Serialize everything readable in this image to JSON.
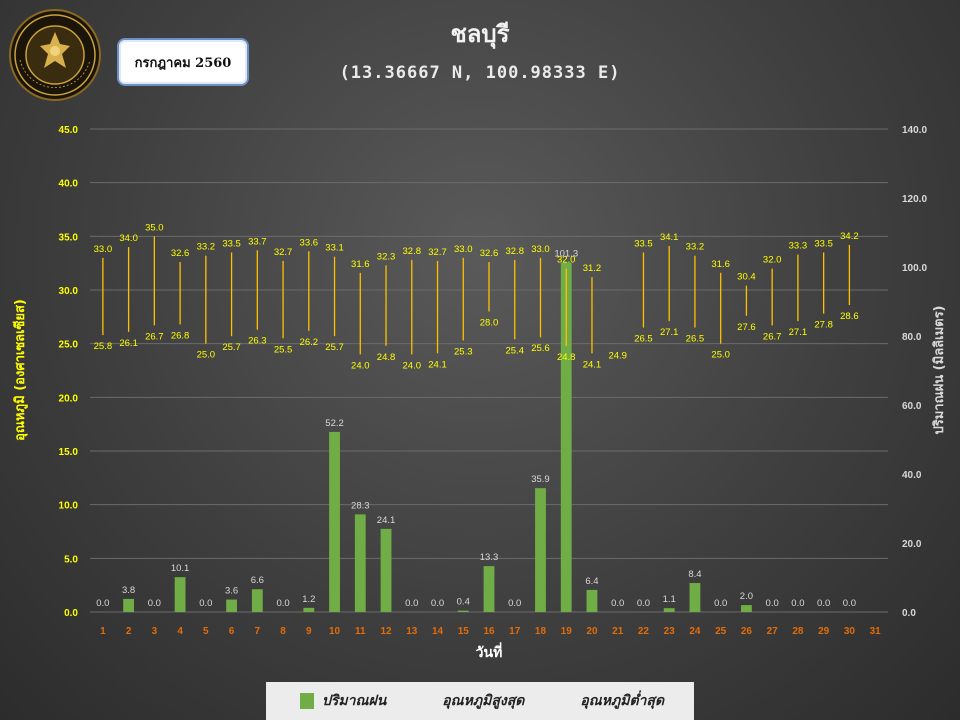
{
  "header": {
    "title": "ชลบุรี",
    "coords": "(13.36667 N, 100.98333 E)",
    "period_badge": "กรกฎาคม 2560",
    "logo_text": "METEOROLOGICAL DEPARTMENT"
  },
  "legend": {
    "rain": "ปริมาณฝน",
    "tmax": "อุณหภูมิสูงสุด",
    "tmin": "อุณหภูมิต่ำสุด"
  },
  "colors": {
    "rain_bar": "#70ad47",
    "temp_line": "#ffc000",
    "temp_label": "#ffff00",
    "day_label": "#e36c0a",
    "rain_label": "#d9d9d9",
    "left_axis": "#ffff00",
    "right_axis": "#d9d9d9"
  },
  "chart_data": {
    "type": "bar",
    "xlabel": "วันที่",
    "ylabel_left": "อุณหภูมิ (องศาเซลเซียส)",
    "ylabel_right": "ปริมาณฝน (มิลลิเมตร)",
    "ylim_left": [
      0,
      45
    ],
    "yticks_left": [
      "0.0",
      "5.0",
      "10.0",
      "15.0",
      "20.0",
      "25.0",
      "30.0",
      "35.0",
      "40.0",
      "45.0"
    ],
    "ylim_right": [
      0,
      140
    ],
    "yticks_right": [
      "0.0",
      "20.0",
      "40.0",
      "60.0",
      "80.0",
      "100.0",
      "120.0",
      "140.0"
    ],
    "categories": [
      "1",
      "2",
      "3",
      "4",
      "5",
      "6",
      "7",
      "8",
      "9",
      "10",
      "11",
      "12",
      "13",
      "14",
      "15",
      "16",
      "17",
      "18",
      "19",
      "20",
      "21",
      "22",
      "23",
      "24",
      "25",
      "26",
      "27",
      "28",
      "29",
      "30",
      "31"
    ],
    "legend_position": "bottom",
    "grid": true,
    "series": [
      {
        "name": "ปริมาณฝน",
        "axis": "right",
        "type": "bar",
        "values": [
          0.0,
          3.8,
          0.0,
          10.1,
          0.0,
          3.6,
          6.6,
          0.0,
          1.2,
          52.2,
          28.3,
          24.1,
          0.0,
          0.0,
          0.4,
          13.3,
          0.0,
          35.9,
          101.3,
          6.4,
          0.0,
          0.0,
          1.1,
          8.4,
          0.0,
          2.0,
          0.0,
          0.0,
          0.0,
          0.0,
          null
        ]
      },
      {
        "name": "อุณหภูมิสูงสุด",
        "axis": "left",
        "type": "range-high",
        "values": [
          33.0,
          34.0,
          35.0,
          32.6,
          33.2,
          33.5,
          33.7,
          32.7,
          33.6,
          33.1,
          31.6,
          32.3,
          32.8,
          32.7,
          33.0,
          32.6,
          32.8,
          33.0,
          32.0,
          31.2,
          null,
          33.5,
          34.1,
          33.2,
          31.6,
          30.4,
          32.0,
          33.3,
          33.5,
          34.2,
          null
        ]
      },
      {
        "name": "อุณหภูมิต่ำสุด",
        "axis": "left",
        "type": "range-low",
        "values": [
          25.8,
          26.1,
          26.7,
          26.8,
          25.0,
          25.7,
          26.3,
          25.5,
          26.2,
          25.7,
          24.0,
          24.8,
          24.0,
          24.1,
          25.3,
          28.0,
          25.4,
          25.6,
          24.8,
          24.1,
          24.9,
          26.5,
          27.1,
          26.5,
          25.0,
          27.6,
          26.7,
          27.1,
          27.8,
          28.6,
          null
        ]
      }
    ]
  }
}
